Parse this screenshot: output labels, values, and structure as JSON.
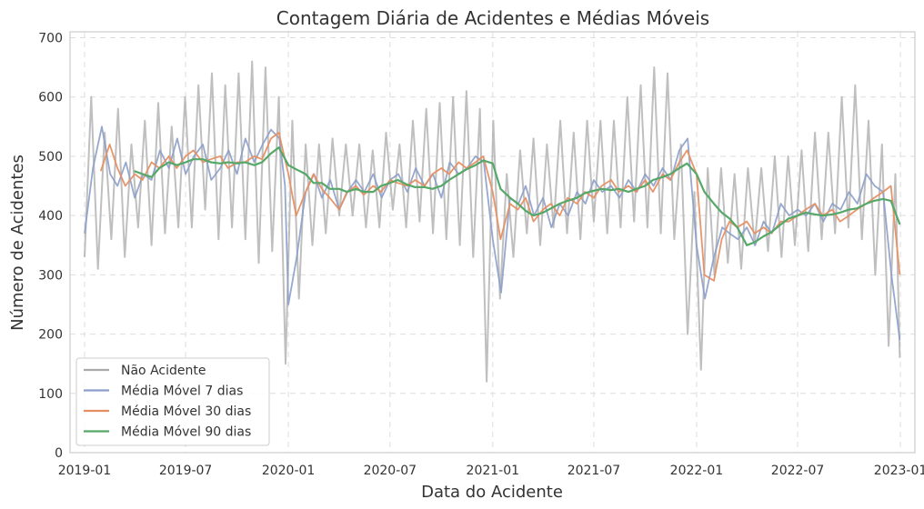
{
  "chart_data": {
    "type": "line",
    "title": "Contagem Diária de Acidentes e Médias Móveis",
    "xlabel": "Data do Acidente",
    "ylabel": "Número de Acidentes",
    "xlim": [
      "2018-12-06",
      "2023-01-27"
    ],
    "ylim": [
      0,
      710
    ],
    "x_ticks": [
      "2019-01",
      "2019-07",
      "2020-01",
      "2020-07",
      "2021-01",
      "2021-07",
      "2022-01",
      "2022-07",
      "2023-01"
    ],
    "y_ticks": [
      0,
      100,
      200,
      300,
      400,
      500,
      600,
      700
    ],
    "grid": true,
    "legend_position": "lower-left",
    "series": [
      {
        "name": "Não Acidente",
        "color": "#aaaaaa",
        "x": [
          "2019-01-01",
          "2019-01-13",
          "2019-01-25",
          "2019-02-06",
          "2019-02-18",
          "2019-03-02",
          "2019-03-14",
          "2019-03-26",
          "2019-04-07",
          "2019-04-19",
          "2019-05-01",
          "2019-05-13",
          "2019-05-25",
          "2019-06-06",
          "2019-06-18",
          "2019-06-30",
          "2019-07-12",
          "2019-07-24",
          "2019-08-05",
          "2019-08-17",
          "2019-08-29",
          "2019-09-10",
          "2019-09-22",
          "2019-10-04",
          "2019-10-16",
          "2019-10-28",
          "2019-11-09",
          "2019-11-21",
          "2019-12-03",
          "2019-12-15",
          "2019-12-27",
          "2020-01-08",
          "2020-01-20",
          "2020-02-01",
          "2020-02-13",
          "2020-02-25",
          "2020-03-08",
          "2020-03-20",
          "2020-04-01",
          "2020-04-13",
          "2020-04-25",
          "2020-05-07",
          "2020-05-19",
          "2020-05-31",
          "2020-06-12",
          "2020-06-24",
          "2020-07-06",
          "2020-07-18",
          "2020-07-30",
          "2020-08-11",
          "2020-08-23",
          "2020-09-04",
          "2020-09-16",
          "2020-09-28",
          "2020-10-10",
          "2020-10-22",
          "2020-11-03",
          "2020-11-15",
          "2020-11-27",
          "2020-12-09",
          "2020-12-21",
          "2021-01-02",
          "2021-01-14",
          "2021-01-26",
          "2021-02-07",
          "2021-02-19",
          "2021-03-03",
          "2021-03-15",
          "2021-03-27",
          "2021-04-08",
          "2021-04-20",
          "2021-05-02",
          "2021-05-14",
          "2021-05-26",
          "2021-06-07",
          "2021-06-19",
          "2021-07-01",
          "2021-07-13",
          "2021-07-25",
          "2021-08-06",
          "2021-08-18",
          "2021-08-30",
          "2021-09-11",
          "2021-09-23",
          "2021-10-05",
          "2021-10-17",
          "2021-10-29",
          "2021-11-10",
          "2021-11-22",
          "2021-12-04",
          "2021-12-16",
          "2021-12-28",
          "2022-01-09",
          "2022-01-21",
          "2022-02-02",
          "2022-02-14",
          "2022-02-26",
          "2022-03-10",
          "2022-03-22",
          "2022-04-03",
          "2022-04-15",
          "2022-04-27",
          "2022-05-09",
          "2022-05-21",
          "2022-06-02",
          "2022-06-14",
          "2022-06-26",
          "2022-07-08",
          "2022-07-20",
          "2022-08-01",
          "2022-08-13",
          "2022-08-25",
          "2022-09-06",
          "2022-09-18",
          "2022-09-30",
          "2022-10-12",
          "2022-10-24",
          "2022-11-05",
          "2022-11-17",
          "2022-11-29",
          "2022-12-11",
          "2022-12-23",
          "2022-12-31"
        ],
        "values": [
          330,
          600,
          310,
          540,
          360,
          580,
          330,
          520,
          380,
          560,
          350,
          590,
          370,
          550,
          380,
          600,
          380,
          620,
          410,
          640,
          360,
          620,
          380,
          640,
          360,
          660,
          320,
          650,
          340,
          600,
          150,
          560,
          260,
          520,
          350,
          520,
          370,
          530,
          400,
          520,
          400,
          520,
          380,
          510,
          380,
          540,
          410,
          520,
          380,
          560,
          390,
          580,
          370,
          590,
          360,
          600,
          350,
          610,
          330,
          580,
          120,
          560,
          260,
          470,
          330,
          510,
          370,
          530,
          350,
          520,
          380,
          560,
          370,
          540,
          360,
          560,
          390,
          560,
          370,
          560,
          380,
          600,
          390,
          620,
          380,
          650,
          370,
          640,
          360,
          520,
          200,
          440,
          140,
          480,
          300,
          480,
          320,
          470,
          310,
          480,
          350,
          480,
          340,
          500,
          330,
          500,
          350,
          510,
          340,
          540,
          360,
          540,
          370,
          600,
          380,
          620,
          360,
          560,
          300,
          520,
          180,
          470,
          160
        ]
      },
      {
        "name": "Média Móvel 7 dias",
        "color": "#8c9ec9",
        "x": [
          "2019-01-01",
          "2019-01-16",
          "2019-02-01",
          "2019-02-16",
          "2019-03-01",
          "2019-03-16",
          "2019-04-01",
          "2019-04-16",
          "2019-05-01",
          "2019-05-16",
          "2019-06-01",
          "2019-06-16",
          "2019-07-01",
          "2019-07-16",
          "2019-08-01",
          "2019-08-16",
          "2019-09-01",
          "2019-09-16",
          "2019-10-01",
          "2019-10-16",
          "2019-11-01",
          "2019-11-16",
          "2019-12-01",
          "2019-12-16",
          "2019-12-26",
          "2020-01-01",
          "2020-01-16",
          "2020-02-01",
          "2020-02-16",
          "2020-03-01",
          "2020-03-16",
          "2020-04-01",
          "2020-04-16",
          "2020-05-01",
          "2020-05-16",
          "2020-06-01",
          "2020-06-16",
          "2020-07-01",
          "2020-07-16",
          "2020-08-01",
          "2020-08-16",
          "2020-09-01",
          "2020-09-16",
          "2020-10-01",
          "2020-10-16",
          "2020-11-01",
          "2020-11-16",
          "2020-12-01",
          "2020-12-16",
          "2021-01-01",
          "2021-01-16",
          "2021-02-01",
          "2021-02-16",
          "2021-03-01",
          "2021-03-16",
          "2021-04-01",
          "2021-04-16",
          "2021-05-01",
          "2021-05-16",
          "2021-06-01",
          "2021-06-16",
          "2021-07-01",
          "2021-07-16",
          "2021-08-01",
          "2021-08-16",
          "2021-09-01",
          "2021-09-16",
          "2021-10-01",
          "2021-10-16",
          "2021-11-01",
          "2021-11-16",
          "2021-12-01",
          "2021-12-16",
          "2022-01-01",
          "2022-01-16",
          "2022-02-01",
          "2022-02-16",
          "2022-03-01",
          "2022-03-16",
          "2022-04-01",
          "2022-04-16",
          "2022-05-01",
          "2022-05-16",
          "2022-06-01",
          "2022-06-16",
          "2022-07-01",
          "2022-07-16",
          "2022-08-01",
          "2022-08-16",
          "2022-09-01",
          "2022-09-16",
          "2022-10-01",
          "2022-10-16",
          "2022-11-01",
          "2022-11-16",
          "2022-12-01",
          "2022-12-16",
          "2022-12-31"
        ],
        "values": [
          370,
          480,
          550,
          470,
          450,
          490,
          430,
          470,
          460,
          510,
          480,
          530,
          470,
          500,
          520,
          460,
          480,
          510,
          470,
          530,
          490,
          520,
          545,
          530,
          450,
          250,
          330,
          440,
          470,
          430,
          460,
          410,
          440,
          460,
          440,
          470,
          430,
          460,
          470,
          440,
          480,
          450,
          470,
          430,
          490,
          470,
          480,
          500,
          490,
          360,
          270,
          430,
          420,
          450,
          400,
          430,
          380,
          420,
          400,
          440,
          420,
          460,
          440,
          450,
          430,
          460,
          440,
          470,
          450,
          480,
          460,
          510,
          530,
          350,
          260,
          330,
          380,
          370,
          360,
          380,
          350,
          390,
          370,
          420,
          400,
          410,
          400,
          420,
          390,
          420,
          410,
          440,
          420,
          470,
          450,
          440,
          300,
          190
        ]
      },
      {
        "name": "Média Móvel 30 dias",
        "color": "#e68f63",
        "x": [
          "2019-01-30",
          "2019-02-15",
          "2019-03-01",
          "2019-03-15",
          "2019-04-01",
          "2019-04-15",
          "2019-05-01",
          "2019-05-15",
          "2019-06-01",
          "2019-06-15",
          "2019-07-01",
          "2019-07-15",
          "2019-08-01",
          "2019-08-15",
          "2019-09-01",
          "2019-09-15",
          "2019-10-01",
          "2019-10-15",
          "2019-11-01",
          "2019-11-15",
          "2019-12-01",
          "2019-12-15",
          "2020-01-01",
          "2020-01-15",
          "2020-02-01",
          "2020-02-15",
          "2020-03-01",
          "2020-03-15",
          "2020-04-01",
          "2020-04-15",
          "2020-05-01",
          "2020-05-15",
          "2020-06-01",
          "2020-06-15",
          "2020-07-01",
          "2020-07-15",
          "2020-08-01",
          "2020-08-15",
          "2020-09-01",
          "2020-09-15",
          "2020-10-01",
          "2020-10-15",
          "2020-11-01",
          "2020-11-15",
          "2020-12-01",
          "2020-12-15",
          "2021-01-01",
          "2021-01-15",
          "2021-02-01",
          "2021-02-15",
          "2021-03-01",
          "2021-03-15",
          "2021-04-01",
          "2021-04-15",
          "2021-05-01",
          "2021-05-15",
          "2021-06-01",
          "2021-06-15",
          "2021-07-01",
          "2021-07-15",
          "2021-08-01",
          "2021-08-15",
          "2021-09-01",
          "2021-09-15",
          "2021-10-01",
          "2021-10-15",
          "2021-11-01",
          "2021-11-15",
          "2021-12-01",
          "2021-12-15",
          "2022-01-01",
          "2022-01-15",
          "2022-02-01",
          "2022-02-15",
          "2022-03-01",
          "2022-03-15",
          "2022-04-01",
          "2022-04-15",
          "2022-05-01",
          "2022-05-15",
          "2022-06-01",
          "2022-06-15",
          "2022-07-01",
          "2022-07-15",
          "2022-08-01",
          "2022-08-15",
          "2022-09-01",
          "2022-09-15",
          "2022-10-01",
          "2022-10-15",
          "2022-11-01",
          "2022-11-15",
          "2022-12-01",
          "2022-12-15",
          "2022-12-31"
        ],
        "values": [
          475,
          520,
          480,
          450,
          470,
          460,
          490,
          480,
          500,
          480,
          500,
          510,
          490,
          495,
          500,
          480,
          490,
          490,
          500,
          495,
          530,
          540,
          470,
          400,
          440,
          470,
          445,
          430,
          410,
          440,
          450,
          435,
          450,
          440,
          460,
          455,
          450,
          460,
          450,
          470,
          480,
          470,
          490,
          480,
          490,
          500,
          440,
          360,
          420,
          410,
          430,
          390,
          410,
          420,
          400,
          430,
          420,
          440,
          430,
          450,
          460,
          440,
          450,
          440,
          460,
          440,
          470,
          460,
          490,
          510,
          470,
          300,
          290,
          360,
          390,
          380,
          390,
          370,
          380,
          370,
          390,
          390,
          400,
          410,
          420,
          400,
          410,
          390,
          400,
          410,
          420,
          430,
          440,
          450,
          300
        ]
      },
      {
        "name": "Média Móvel 90 dias",
        "color": "#55a868",
        "x": [
          "2019-03-31",
          "2019-04-15",
          "2019-05-01",
          "2019-05-15",
          "2019-06-01",
          "2019-06-15",
          "2019-07-01",
          "2019-07-15",
          "2019-08-01",
          "2019-08-15",
          "2019-09-01",
          "2019-09-15",
          "2019-10-01",
          "2019-10-15",
          "2019-11-01",
          "2019-11-15",
          "2019-12-01",
          "2019-12-15",
          "2020-01-01",
          "2020-01-15",
          "2020-02-01",
          "2020-02-15",
          "2020-03-01",
          "2020-03-15",
          "2020-04-01",
          "2020-04-15",
          "2020-05-01",
          "2020-05-15",
          "2020-06-01",
          "2020-06-15",
          "2020-07-01",
          "2020-07-15",
          "2020-08-01",
          "2020-08-15",
          "2020-09-01",
          "2020-09-15",
          "2020-10-01",
          "2020-10-15",
          "2020-11-01",
          "2020-11-15",
          "2020-12-01",
          "2020-12-15",
          "2021-01-01",
          "2021-01-15",
          "2021-02-01",
          "2021-02-15",
          "2021-03-01",
          "2021-03-15",
          "2021-04-01",
          "2021-04-15",
          "2021-05-01",
          "2021-05-15",
          "2021-06-01",
          "2021-06-15",
          "2021-07-01",
          "2021-07-15",
          "2021-08-01",
          "2021-08-15",
          "2021-09-01",
          "2021-09-15",
          "2021-10-01",
          "2021-10-15",
          "2021-11-01",
          "2021-11-15",
          "2021-12-01",
          "2021-12-15",
          "2022-01-01",
          "2022-01-15",
          "2022-02-01",
          "2022-02-15",
          "2022-03-01",
          "2022-03-15",
          "2022-04-01",
          "2022-04-15",
          "2022-05-01",
          "2022-05-15",
          "2022-06-01",
          "2022-06-15",
          "2022-07-01",
          "2022-07-15",
          "2022-08-01",
          "2022-08-15",
          "2022-09-01",
          "2022-09-15",
          "2022-10-01",
          "2022-10-15",
          "2022-11-01",
          "2022-11-15",
          "2022-12-01",
          "2022-12-15",
          "2022-12-31"
        ],
        "values": [
          475,
          470,
          465,
          480,
          490,
          485,
          490,
          495,
          495,
          490,
          488,
          490,
          488,
          490,
          485,
          490,
          505,
          515,
          485,
          478,
          470,
          455,
          455,
          445,
          445,
          440,
          445,
          440,
          440,
          450,
          455,
          460,
          452,
          448,
          448,
          445,
          450,
          460,
          470,
          478,
          485,
          493,
          488,
          445,
          430,
          420,
          408,
          400,
          405,
          412,
          420,
          425,
          430,
          438,
          442,
          445,
          443,
          445,
          440,
          445,
          450,
          460,
          465,
          470,
          480,
          488,
          470,
          440,
          420,
          405,
          395,
          380,
          350,
          355,
          365,
          372,
          385,
          395,
          400,
          405,
          402,
          400,
          402,
          405,
          410,
          412,
          420,
          425,
          428,
          425,
          385
        ]
      }
    ]
  }
}
